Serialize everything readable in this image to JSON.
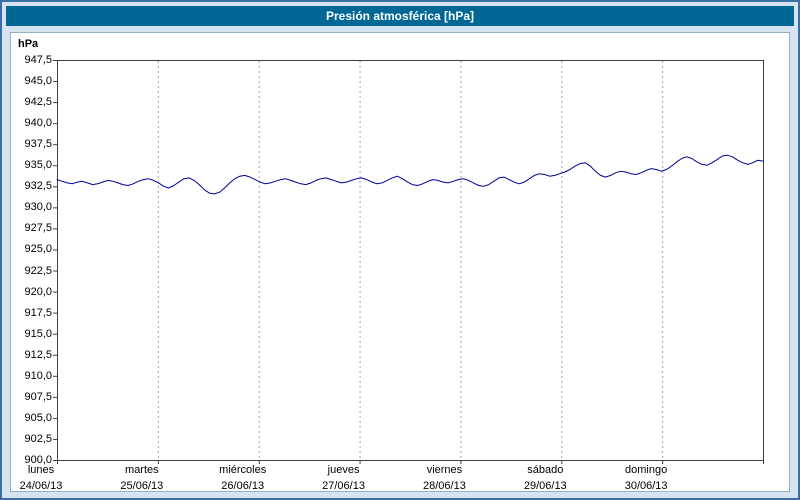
{
  "window": {
    "title": "Presión atmosférica [hPa]"
  },
  "chart_data": {
    "type": "line",
    "title": "Presión atmosférica [hPa]",
    "xlabel": "",
    "ylabel": "hPa",
    "ylim": [
      900,
      947.5
    ],
    "ytick_step": 2.5,
    "ytick_labels": [
      "947,5",
      "945,0",
      "942,5",
      "940,0",
      "937,5",
      "935,0",
      "932,5",
      "930,0",
      "927,5",
      "925,0",
      "922,5",
      "920,0",
      "917,5",
      "915,0",
      "912,5",
      "910,0",
      "907,5",
      "905,0",
      "902,5",
      "900,0"
    ],
    "grid": "vertical-dashed",
    "legend": "none",
    "x_days": [
      {
        "name": "lunes",
        "date": "24/06/13"
      },
      {
        "name": "martes",
        "date": "25/06/13"
      },
      {
        "name": "miércoles",
        "date": "26/06/13"
      },
      {
        "name": "jueves",
        "date": "27/06/13"
      },
      {
        "name": "viernes",
        "date": "28/06/13"
      },
      {
        "name": "sábado",
        "date": "29/06/13"
      },
      {
        "name": "domingo",
        "date": "30/06/13"
      }
    ],
    "series": [
      {
        "name": "Presión atmosférica",
        "color": "#000099",
        "values": [
          933.3,
          933.1,
          932.9,
          932.8,
          933.0,
          933.1,
          932.9,
          932.7,
          932.8,
          933.0,
          933.2,
          933.1,
          932.9,
          932.7,
          932.6,
          932.8,
          933.1,
          933.3,
          933.4,
          933.2,
          932.9,
          932.5,
          932.3,
          932.6,
          933.0,
          933.4,
          933.5,
          933.2,
          932.7,
          932.1,
          931.7,
          931.6,
          931.8,
          932.3,
          932.9,
          933.4,
          933.7,
          933.8,
          933.6,
          933.3,
          933.0,
          932.8,
          932.9,
          933.1,
          933.3,
          933.4,
          933.2,
          933.0,
          932.8,
          932.7,
          932.9,
          933.2,
          933.4,
          933.5,
          933.3,
          933.1,
          932.9,
          933.0,
          933.2,
          933.4,
          933.5,
          933.3,
          933.0,
          932.8,
          932.9,
          933.2,
          933.5,
          933.7,
          933.4,
          933.0,
          932.7,
          932.6,
          932.8,
          933.1,
          933.3,
          933.2,
          933.0,
          932.9,
          933.1,
          933.3,
          933.4,
          933.2,
          932.9,
          932.6,
          932.5,
          932.7,
          933.1,
          933.5,
          933.6,
          933.3,
          933.0,
          932.8,
          933.0,
          933.4,
          933.8,
          934.0,
          933.9,
          933.7,
          933.8,
          934.0,
          934.2,
          934.5,
          934.9,
          935.2,
          935.3,
          934.9,
          934.3,
          933.8,
          933.6,
          933.8,
          934.1,
          934.3,
          934.2,
          934.0,
          933.9,
          934.1,
          934.4,
          934.6,
          934.5,
          934.3,
          934.5,
          934.9,
          935.4,
          935.8,
          936.0,
          935.8,
          935.4,
          935.1,
          935.0,
          935.3,
          935.7,
          936.1,
          936.2,
          936.0,
          935.6,
          935.3,
          935.1,
          935.3,
          935.6,
          935.5
        ]
      }
    ],
    "colors": {
      "line": "#000099",
      "titlebar_bg": "#016896",
      "titlebar_text": "#ffffff",
      "window_bg": "#d6e3f1",
      "window_border": "#3a6ea5",
      "plot_bg": "#ffffff",
      "grid": "#a0a0a0",
      "axis": "#404040"
    }
  }
}
